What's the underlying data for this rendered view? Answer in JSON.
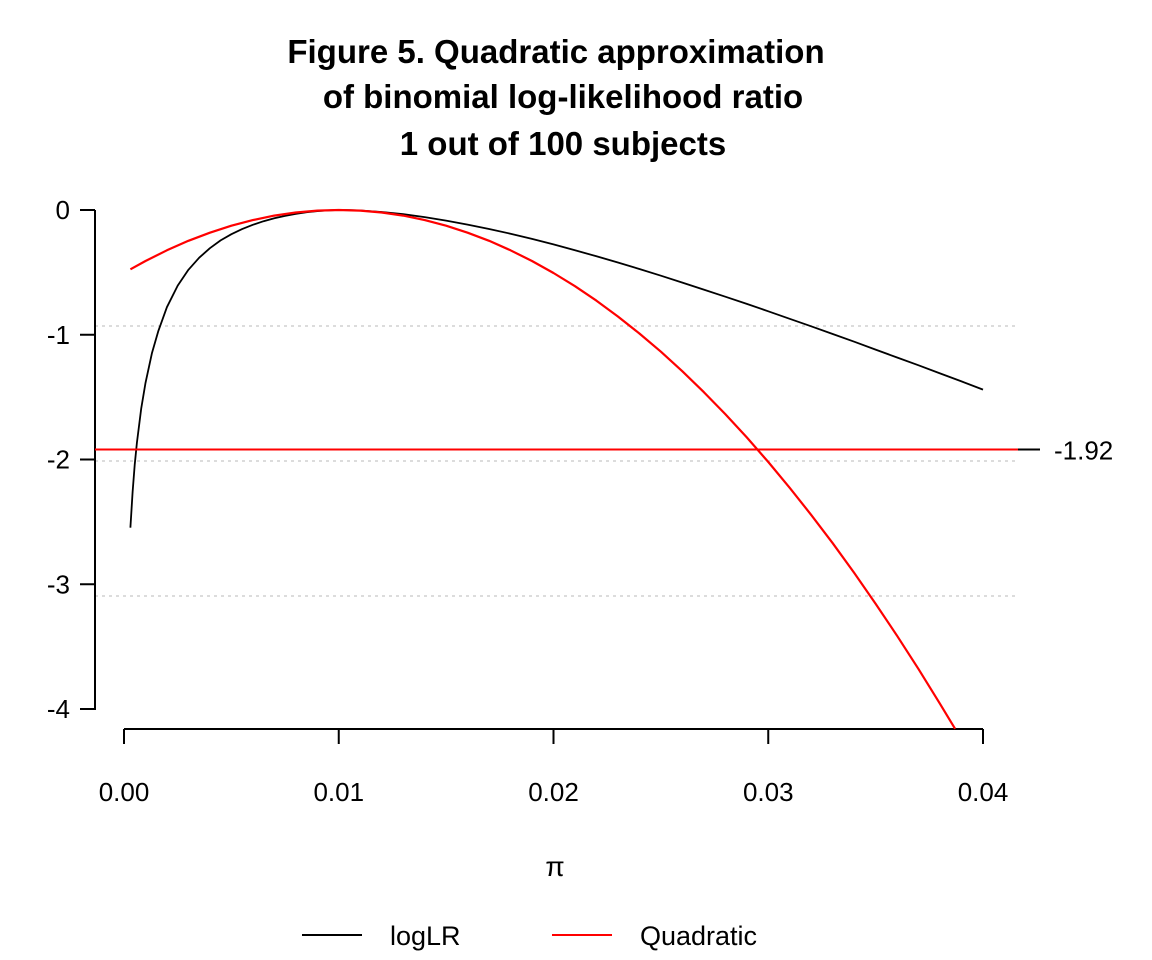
{
  "chart_data": {
    "type": "line",
    "title": [
      "Figure 5. Quadratic approximation",
      "of binomial log-likelihood ratio",
      "1 out of 100 subjects"
    ],
    "xlabel": "π",
    "ylabel": "",
    "xlim": [
      0.0,
      0.04
    ],
    "ylim": [
      -4,
      0
    ],
    "x_ticks": [
      "0.00",
      "0.01",
      "0.02",
      "0.03",
      "0.04"
    ],
    "y_ticks": [
      "0",
      "-1",
      "-2",
      "-3",
      "-4"
    ],
    "grid": "horizontal dotted at y = -0.92, -1.99, -3.09",
    "reference_lines": [
      {
        "y": -1.92,
        "label": "-1.92",
        "color": "#ff0000"
      }
    ],
    "series": [
      {
        "name": "logLR",
        "color": "#000000",
        "x": [
          0.0003,
          0.0004,
          0.0005,
          0.0006,
          0.0008,
          0.001,
          0.0013,
          0.0016,
          0.002,
          0.0025,
          0.003,
          0.0035,
          0.004,
          0.0045,
          0.005,
          0.0055,
          0.006,
          0.0065,
          0.007,
          0.0075,
          0.008,
          0.0085,
          0.009,
          0.0095,
          0.01,
          0.0105,
          0.011,
          0.012,
          0.013,
          0.014,
          0.015,
          0.016,
          0.017,
          0.018,
          0.019,
          0.02,
          0.021,
          0.022,
          0.023,
          0.024,
          0.025,
          0.026,
          0.027,
          0.028,
          0.029,
          0.03,
          0.031,
          0.032,
          0.033,
          0.034,
          0.035,
          0.036,
          0.037,
          0.038,
          0.039,
          0.04
        ],
        "values": [
          -2.547,
          -2.261,
          -2.043,
          -1.866,
          -1.592,
          -1.386,
          -1.149,
          -0.968,
          -0.779,
          -0.606,
          -0.479,
          -0.382,
          -0.306,
          -0.244,
          -0.194,
          -0.153,
          -0.119,
          -0.09,
          -0.066,
          -0.047,
          -0.031,
          -0.018,
          -0.009,
          -0.003,
          0.0,
          -0.001,
          -0.004,
          -0.016,
          -0.034,
          -0.057,
          -0.085,
          -0.117,
          -0.152,
          -0.19,
          -0.232,
          -0.276,
          -0.322,
          -0.371,
          -0.421,
          -0.473,
          -0.527,
          -0.582,
          -0.638,
          -0.695,
          -0.753,
          -0.812,
          -0.872,
          -0.932,
          -0.994,
          -1.056,
          -1.119,
          -1.182,
          -1.245,
          -1.31,
          -1.374,
          -1.44
        ]
      },
      {
        "name": "Quadratic",
        "color": "#ff0000",
        "x": [
          0.0003,
          0.001,
          0.002,
          0.003,
          0.004,
          0.005,
          0.006,
          0.007,
          0.008,
          0.009,
          0.01,
          0.011,
          0.012,
          0.013,
          0.014,
          0.015,
          0.016,
          0.017,
          0.018,
          0.019,
          0.02,
          0.021,
          0.022,
          0.023,
          0.024,
          0.025,
          0.026,
          0.027,
          0.028,
          0.029,
          0.03,
          0.031,
          0.032,
          0.033,
          0.034,
          0.035,
          0.036,
          0.037,
          0.038,
          0.0387
        ],
        "values": [
          -0.475,
          -0.409,
          -0.323,
          -0.247,
          -0.182,
          -0.126,
          -0.081,
          -0.045,
          -0.02,
          -0.005,
          0.0,
          -0.005,
          -0.02,
          -0.045,
          -0.081,
          -0.126,
          -0.182,
          -0.247,
          -0.323,
          -0.409,
          -0.505,
          -0.611,
          -0.727,
          -0.854,
          -0.99,
          -1.136,
          -1.293,
          -1.46,
          -1.636,
          -1.823,
          -2.02,
          -2.227,
          -2.444,
          -2.671,
          -2.909,
          -3.156,
          -3.413,
          -3.681,
          -3.958,
          -4.159
        ]
      }
    ],
    "legend": {
      "position": "bottom-center",
      "entries": [
        "logLR",
        "Quadratic"
      ]
    }
  }
}
